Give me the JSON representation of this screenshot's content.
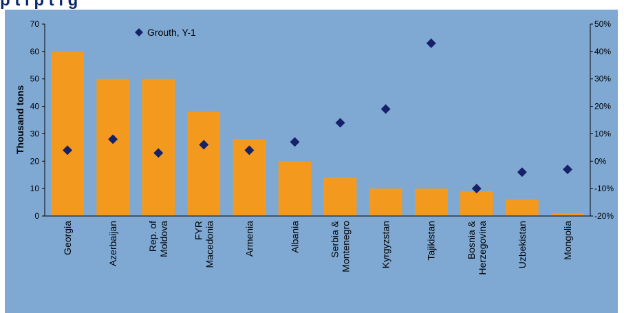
{
  "chart_data": {
    "type": "bar",
    "categories": [
      [
        "Georgia"
      ],
      [
        "Azerbaijan"
      ],
      [
        "Rep. of",
        "Moldova"
      ],
      [
        "FYR",
        "Macedonia"
      ],
      [
        "Armenia"
      ],
      [
        "Albania"
      ],
      [
        "Serbia &",
        "Montenegro"
      ],
      [
        "Kyrgyzstan"
      ],
      [
        "Tajikistan"
      ],
      [
        "Bosnia &",
        "Herzegovina"
      ],
      [
        "Uzbekistan"
      ],
      [
        "Mongolia"
      ]
    ],
    "series": [
      {
        "type": "bar",
        "axis": "left",
        "color": "#f39a1e",
        "values": [
          60,
          50,
          50,
          38,
          28,
          20,
          14,
          10,
          10,
          9,
          6,
          1
        ]
      },
      {
        "name": "Grouth, Y-1",
        "type": "scatter",
        "marker": "diamond",
        "axis": "right",
        "color": "#16216a",
        "values": [
          4,
          8,
          3,
          6,
          4,
          7,
          14,
          19,
          43,
          -10,
          -4,
          -3
        ]
      }
    ],
    "ylabel": "Thousand tons",
    "ylim": [
      0,
      70
    ],
    "yticks": [
      "0",
      "10",
      "20",
      "30",
      "40",
      "50",
      "60",
      "70"
    ],
    "y2lim": [
      -20,
      50
    ],
    "y2ticks": [
      "-20%",
      "-10%",
      "0%",
      "10%",
      "20%",
      "30%",
      "40%",
      "50%"
    ],
    "legend_position": "top-left",
    "grid": false
  }
}
